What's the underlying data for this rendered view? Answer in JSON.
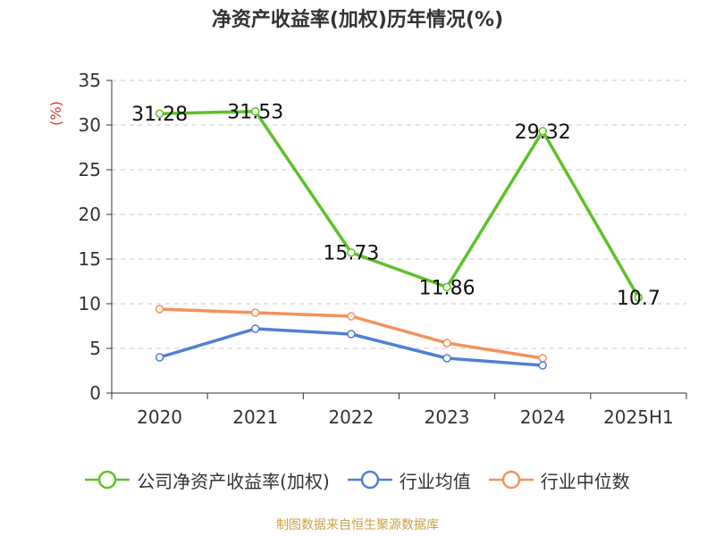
{
  "title": "净资产收益率(加权)历年情况(%)",
  "source": "制图数据来自恒生聚源数据库",
  "chart_data": {
    "type": "line",
    "categories": [
      "2020",
      "2021",
      "2022",
      "2023",
      "2024",
      "2025H1"
    ],
    "ylabel": "(%)",
    "ylim": [
      0,
      35
    ],
    "yticks": [
      "0",
      "5",
      "10",
      "15",
      "20",
      "25",
      "30",
      "35"
    ],
    "grid": true,
    "legend_position": "bottom",
    "series": [
      {
        "name": "公司净资产收益率(加权)",
        "color": "#5ec12a",
        "values": [
          31.28,
          31.53,
          15.73,
          11.86,
          29.32,
          10.7
        ],
        "labels": [
          "31.28",
          "31.53",
          "15.73",
          "11.86",
          "29.32",
          "10.7"
        ]
      },
      {
        "name": "行业均值",
        "color": "#4f7fd6",
        "values": [
          4.0,
          7.2,
          6.6,
          3.9,
          3.1,
          null
        ]
      },
      {
        "name": "行业中位数",
        "color": "#f4915b",
        "values": [
          9.4,
          9.0,
          8.6,
          5.6,
          3.9,
          null
        ]
      }
    ]
  }
}
